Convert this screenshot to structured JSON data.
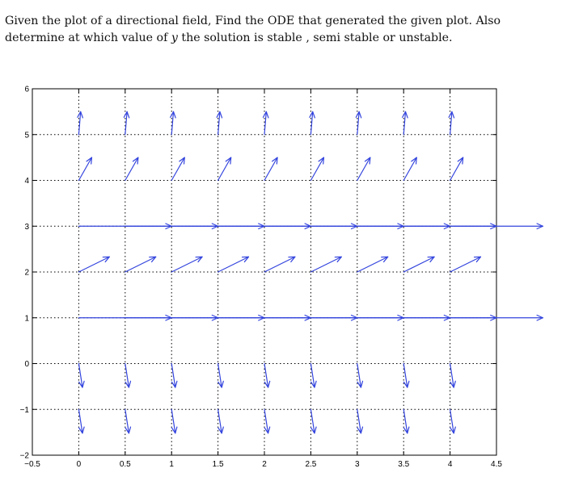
{
  "question": {
    "line1": "Given the plot of a directional field, Find the ODE that generated the given plot.  Also",
    "line2_pre": "determine at which value of ",
    "line2_var": "y",
    "line2_post": " the solution is stable , semi stable or unstable."
  },
  "colors": {
    "arrow": "#3344dd",
    "grid": "#000000",
    "axes": "#000000"
  },
  "chart_data": {
    "type": "quiver",
    "title": "",
    "xlabel": "",
    "ylabel": "",
    "xlim": [
      -0.5,
      4.5
    ],
    "ylim": [
      -2,
      6
    ],
    "x_ticks": [
      -0.5,
      0,
      0.5,
      1,
      1.5,
      2,
      2.5,
      3,
      3.5,
      4,
      4.5
    ],
    "x_tick_labels": [
      "−0.5",
      "0",
      "0.5",
      "1",
      "1.5",
      "2",
      "2.5",
      "3",
      "3.5",
      "4",
      "4.5"
    ],
    "y_ticks": [
      -2,
      -1,
      0,
      1,
      2,
      3,
      4,
      5,
      6
    ],
    "y_tick_labels": [
      "−2",
      "−1",
      "0",
      "1",
      "2",
      "3",
      "4",
      "5",
      "6"
    ],
    "grid": "dotted",
    "x_points": [
      0,
      0.5,
      1,
      1.5,
      2,
      2.5,
      3,
      3.5,
      4
    ],
    "rows": [
      {
        "y": -1,
        "dx": 0.04,
        "dy": -0.52
      },
      {
        "y": 0,
        "dx": 0.04,
        "dy": -0.52
      },
      {
        "y": 1,
        "dx": 1,
        "dy": 0
      },
      {
        "y": 2,
        "dx": 0.33,
        "dy": 0.33
      },
      {
        "y": 3,
        "dx": 1,
        "dy": 0
      },
      {
        "y": 4,
        "dx": 0.14,
        "dy": 0.5
      },
      {
        "y": 5,
        "dx": 0.02,
        "dy": 0.5
      }
    ]
  }
}
